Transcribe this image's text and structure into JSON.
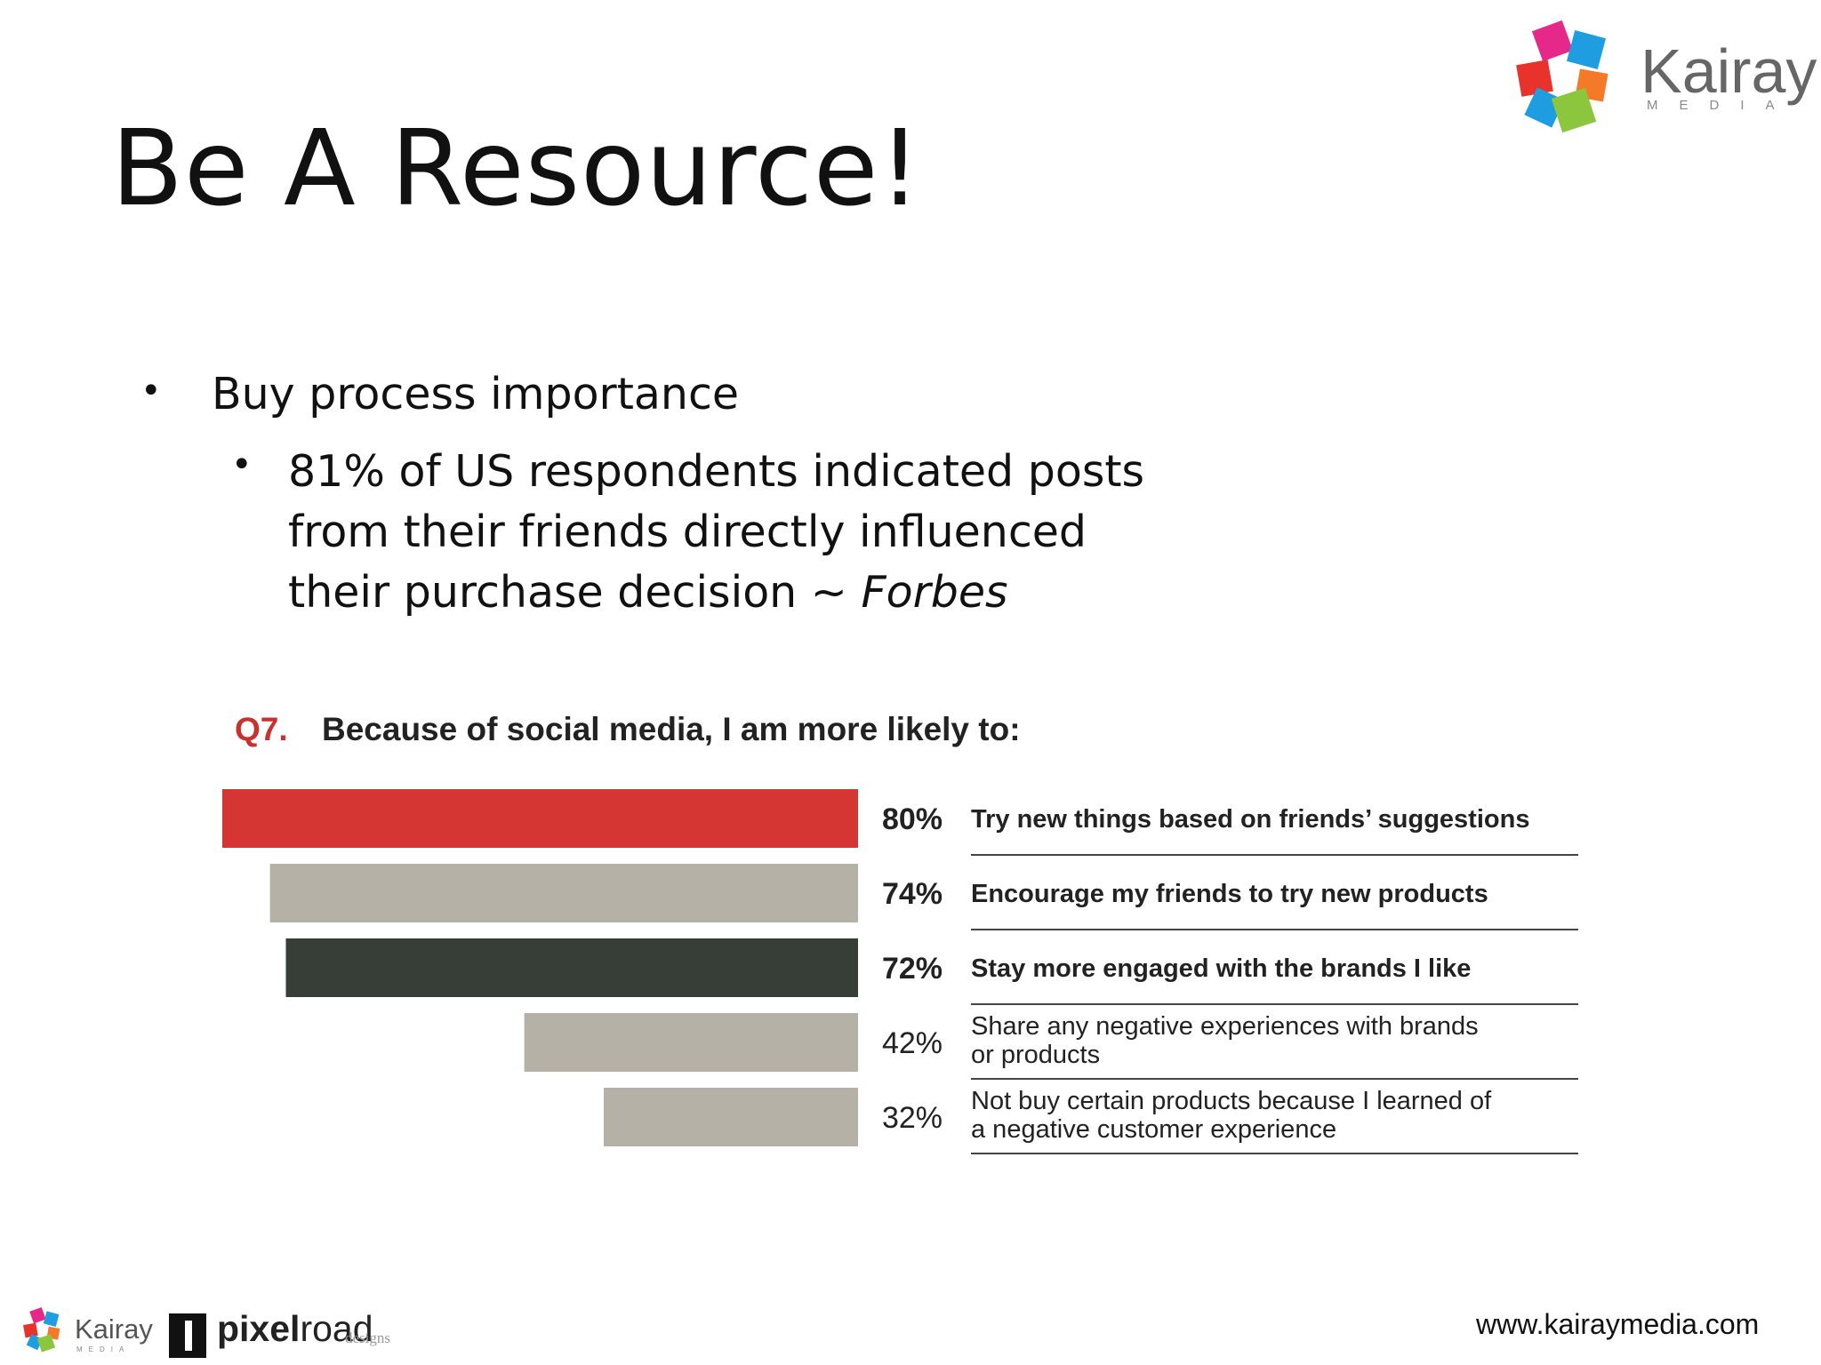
{
  "slide": {
    "title": "Be A Resource!"
  },
  "bullets": {
    "level1": "Buy process importance",
    "level2_text": "81% of US respondents indicated posts from their friends directly influenced their purchase decision ~ ",
    "level2_source": "Forbes"
  },
  "chart_header": {
    "question_label": "Q7.",
    "question_text": "Because of social media, I am more likely to:"
  },
  "chart_data": {
    "type": "bar",
    "orientation": "horizontal",
    "title": "Because of social media, I am more likely to:",
    "categories": [
      "Try new things based on friends' suggestions",
      "Encourage my friends to try new products",
      "Stay more engaged with the brands I like",
      "Share any negative experiences with brands or products",
      "Not buy certain products because I learned of a negative customer experience"
    ],
    "label_lines": [
      [
        "Try new things based on friends’ suggestions"
      ],
      [
        "Encourage my friends to try new products"
      ],
      [
        "Stay more engaged with the brands I like"
      ],
      [
        "Share any negative experiences with brands",
        "or products"
      ],
      [
        "Not buy certain products because I learned of",
        "a negative customer experience"
      ]
    ],
    "values": [
      80,
      74,
      72,
      42,
      32
    ],
    "value_labels": [
      "80%",
      "74%",
      "72%",
      "42%",
      "32%"
    ],
    "bold": [
      true,
      true,
      true,
      false,
      false
    ],
    "colors": [
      "#d63633",
      "#b6b1a6",
      "#373d37",
      "#b6b1a6",
      "#b6b1a6"
    ],
    "xlim": [
      0,
      100
    ],
    "grid": false,
    "legend": "none"
  },
  "branding": {
    "logo_name": "Kairay",
    "logo_sub": "MEDIA",
    "footer_partner_bold": "pixel",
    "footer_partner_rest": "road",
    "footer_partner_sub": "designs",
    "website": "www.kairaymedia.com",
    "colors": {
      "pink": "#e6288a",
      "blue": "#1e9ee0",
      "red": "#e8322b",
      "orange": "#f47a2a",
      "green": "#8cc63f"
    }
  }
}
